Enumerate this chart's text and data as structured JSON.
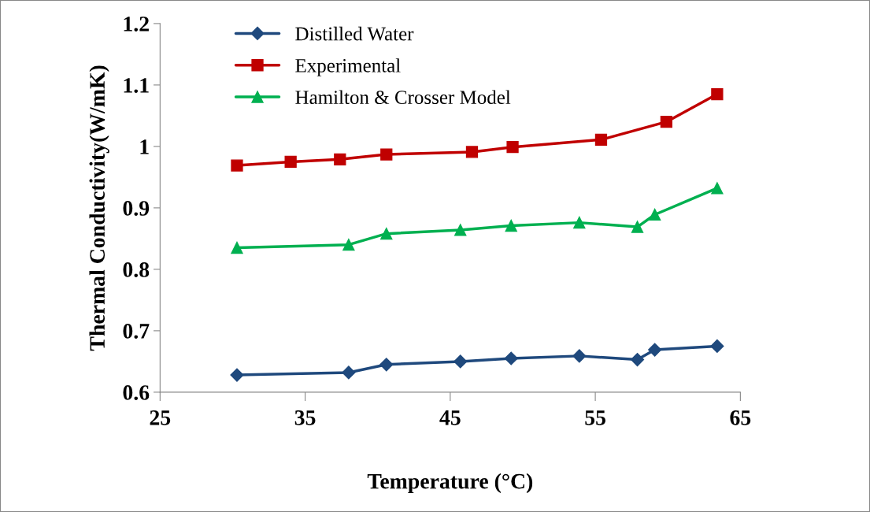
{
  "chart_data": {
    "type": "line",
    "xlabel": "Temperature (°C)",
    "ylabel": "Thermal Conductivity(W/mK)",
    "xlim": [
      25,
      65
    ],
    "xticks": [
      25,
      35,
      45,
      55,
      65
    ],
    "ylim": [
      0.6,
      1.2
    ],
    "yticks": [
      0.6,
      0.7,
      0.8,
      0.9,
      1,
      1.1,
      1.2
    ],
    "grid": false,
    "legend": "top left",
    "series": [
      {
        "name": "Distilled Water",
        "color": "#1f497d",
        "marker": "diamond",
        "x": [
          30.3,
          38.0,
          40.6,
          45.7,
          49.2,
          53.9,
          57.9,
          59.1,
          63.4
        ],
        "values": [
          0.628,
          0.632,
          0.645,
          0.65,
          0.655,
          0.659,
          0.653,
          0.669,
          0.675
        ]
      },
      {
        "name": "Experimental",
        "color": "#c00000",
        "marker": "square",
        "x": [
          30.3,
          34.0,
          37.4,
          40.6,
          46.5,
          49.3,
          55.4,
          59.9,
          63.4
        ],
        "values": [
          0.969,
          0.975,
          0.979,
          0.987,
          0.991,
          0.999,
          1.011,
          1.04,
          1.085
        ]
      },
      {
        "name": "Hamilton & Crosser Model",
        "color": "#00b050",
        "marker": "triangle",
        "x": [
          30.3,
          38.0,
          40.6,
          45.7,
          49.2,
          53.9,
          57.9,
          59.1,
          63.4
        ],
        "values": [
          0.835,
          0.84,
          0.858,
          0.864,
          0.871,
          0.876,
          0.869,
          0.889,
          0.932
        ]
      }
    ]
  }
}
